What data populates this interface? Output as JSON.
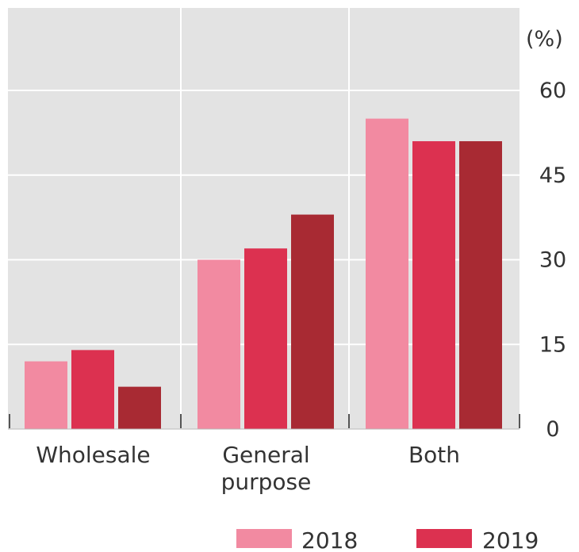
{
  "chart_data": {
    "type": "bar",
    "unit_label": "(%)",
    "categories": [
      "Wholesale",
      "General purpose",
      "Both"
    ],
    "category_lines": [
      [
        "Wholesale"
      ],
      [
        "General",
        "purpose"
      ],
      [
        "Both"
      ]
    ],
    "series": [
      {
        "name": "2018",
        "color": "#f28aa1",
        "values": [
          12,
          30,
          55
        ]
      },
      {
        "name": "2019",
        "color": "#dc3150",
        "values": [
          14,
          32,
          51
        ]
      },
      {
        "color": "#a82a33",
        "values": [
          7.5,
          38,
          51
        ]
      }
    ],
    "yticks": [
      0,
      15,
      30,
      45,
      60
    ],
    "ylim": [
      0,
      70
    ],
    "grid": true,
    "legend_position": "bottom-right",
    "plot_background": "#e3e3e3",
    "grid_color": "#ffffff"
  }
}
